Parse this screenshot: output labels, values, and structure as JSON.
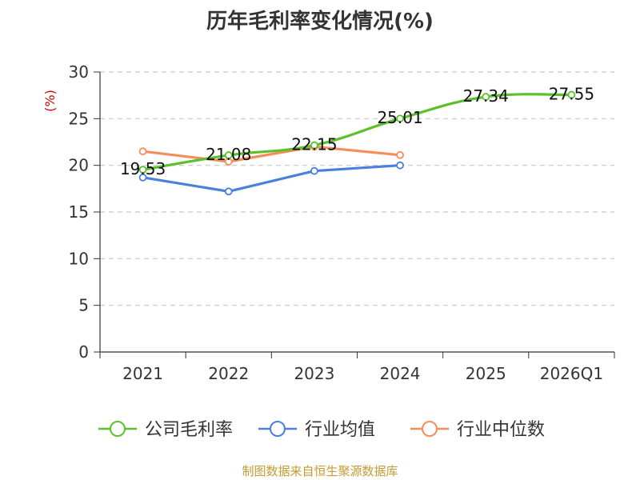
{
  "chart_data": {
    "type": "line",
    "title": "历年毛利率变化情况(%)",
    "ylabel": "(%)",
    "categories": [
      "2021",
      "2022",
      "2023",
      "2024",
      "2025",
      "2026Q1"
    ],
    "ylim": [
      0,
      30
    ],
    "yticks": [
      0,
      5,
      10,
      15,
      20,
      25,
      30
    ],
    "grid": true,
    "legend_position": "bottom",
    "series": [
      {
        "name": "公司毛利率",
        "color": "#5bc02a",
        "values": [
          19.53,
          21.08,
          22.15,
          25.01,
          27.34,
          27.55
        ],
        "labels": [
          "19.53",
          "21.08",
          "22.15",
          "25.01",
          "27.34",
          "27.55"
        ]
      },
      {
        "name": "行业均值",
        "color": "#4a7fdc",
        "values": [
          18.7,
          17.2,
          19.4,
          20.0,
          null,
          null
        ]
      },
      {
        "name": "行业中位数",
        "color": "#f58d5b",
        "values": [
          21.5,
          20.4,
          22.0,
          21.1,
          null,
          null
        ]
      }
    ]
  },
  "source": "制图数据来自恒生聚源数据库"
}
